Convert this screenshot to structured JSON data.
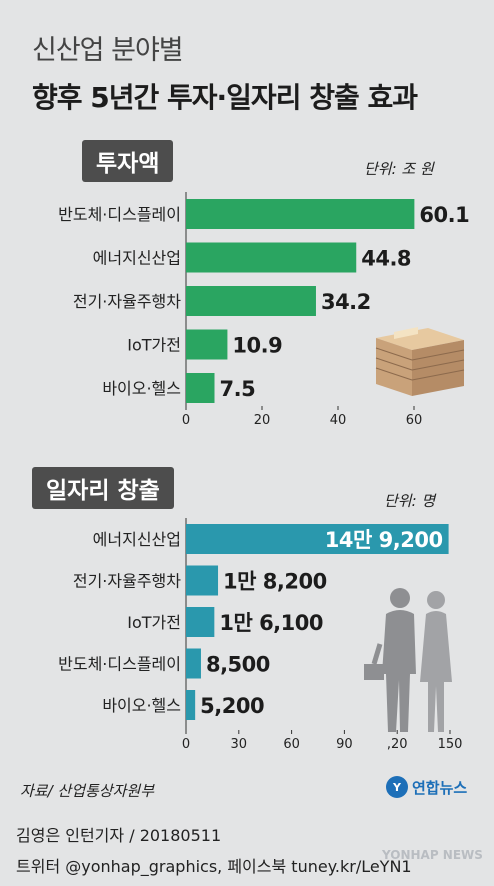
{
  "headline": "신산업 분야별",
  "title": "향후 5년간 투자·일자리 창출 효과",
  "source": "자료/ 산업통상자원부",
  "credit": "김영은 인턴기자 / 20180511",
  "social": "트위터 @yonhap_graphics, 페이스북 tuney.kr/LeYN1",
  "logo_text": "연합뉴스",
  "watermark_text": "YONHAP NEWS",
  "colors": {
    "investment_bar": "#2aa561",
    "jobs_bar": "#2a98ad",
    "background": "#e3e4e5",
    "tab": "#4d4d4d"
  },
  "icons": [
    "money-stack-icon",
    "business-people-icon",
    "yonhap-logo-icon"
  ],
  "chart_data": [
    {
      "type": "bar",
      "orientation": "horizontal",
      "section_label": "투자액",
      "unit_label": "단위: 조 원",
      "categories": [
        "반도체·디스플레이",
        "에너지신산업",
        "전기·자율주행차",
        "IoT가전",
        "바이오·헬스"
      ],
      "values": [
        60.1,
        44.8,
        34.2,
        10.9,
        7.5
      ],
      "value_labels": [
        "60.1",
        "44.8",
        "34.2",
        "10.9",
        "7.5"
      ],
      "x_ticks": [
        "0",
        "20",
        "40",
        "60"
      ],
      "xlim": [
        0,
        70
      ],
      "grid": false
    },
    {
      "type": "bar",
      "orientation": "horizontal",
      "section_label": "일자리 창출",
      "unit_label": "단위: 명",
      "categories": [
        "에너지신산업",
        "전기·자율주행차",
        "IoT가전",
        "반도체·디스플레이",
        "바이오·헬스"
      ],
      "values": [
        149200,
        18200,
        16100,
        8500,
        5200
      ],
      "value_labels": [
        "14만 9,200",
        "1만 8,200",
        "1만 6,100",
        "8,500",
        "5,200"
      ],
      "x_ticks": [
        "0",
        "30",
        "60",
        "90",
        ",20",
        "150"
      ],
      "xlim": [
        0,
        150000
      ],
      "grid": false
    }
  ]
}
